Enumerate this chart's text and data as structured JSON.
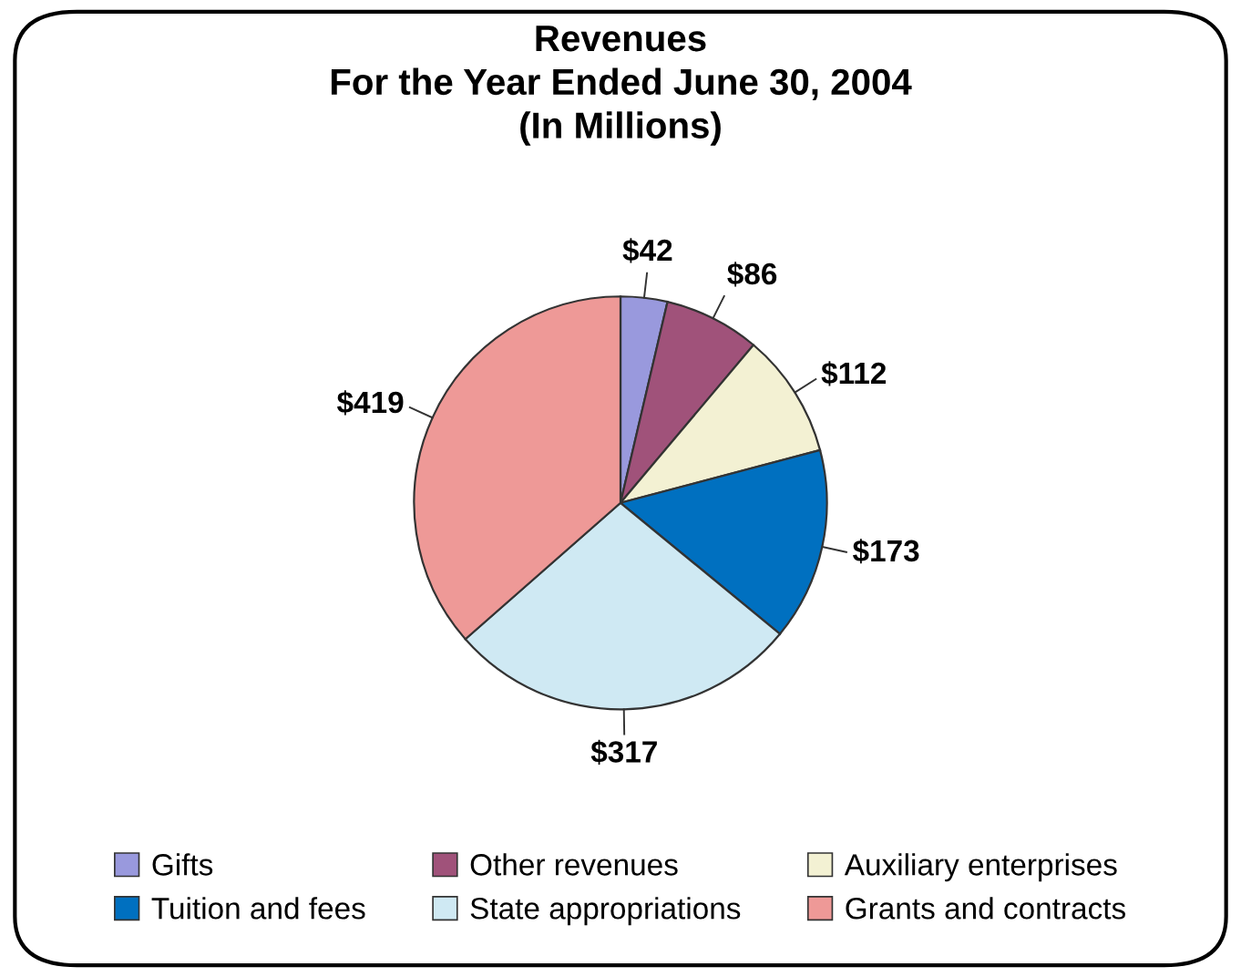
{
  "chart_data": {
    "type": "pie",
    "title": "Revenues\nFor the Year Ended June 30, 2004\n(In Millions)",
    "categories": [
      "Gifts",
      "Other revenues",
      "Auxiliary enterprises",
      "Tuition and fees",
      "State appropriations",
      "Grants and contracts"
    ],
    "values": [
      42,
      86,
      112,
      173,
      317,
      419
    ],
    "value_labels": [
      "$42",
      "$86",
      "$112",
      "$173",
      "$317",
      "$419"
    ],
    "colors": [
      "#9999dd",
      "#a0527a",
      "#f3f1d3",
      "#0070c0",
      "#cfe9f3",
      "#ee9997"
    ],
    "legend": "bottom"
  }
}
